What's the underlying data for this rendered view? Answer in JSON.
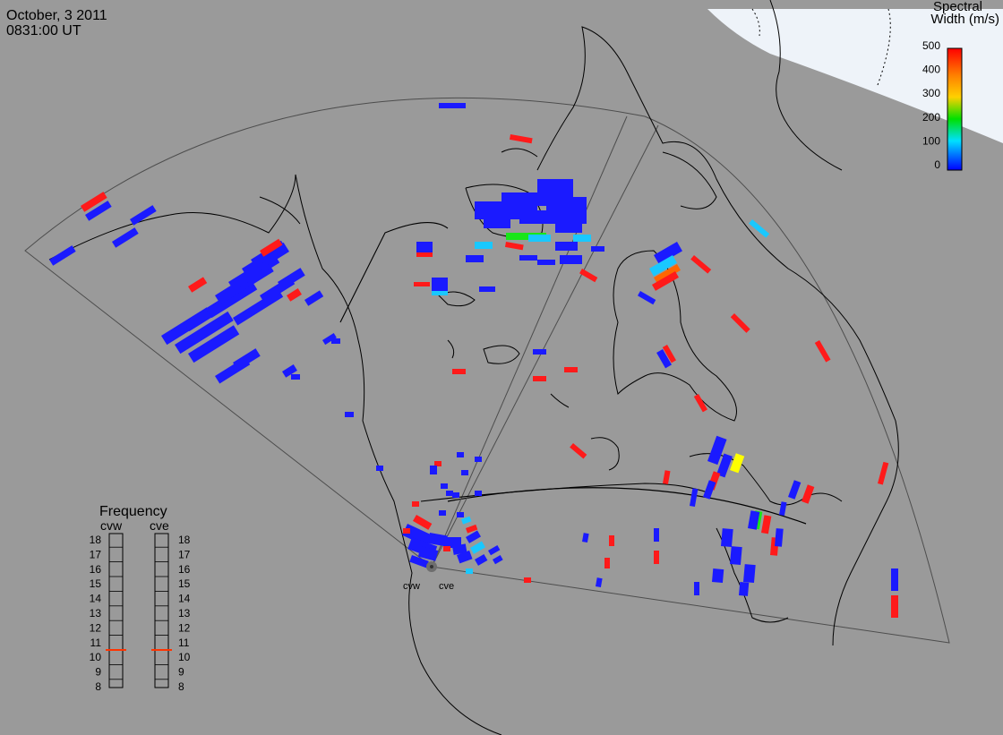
{
  "header": {
    "date": "October, 3 2011",
    "time": "0831:00 UT"
  },
  "colorbar": {
    "title_line1": "Spectral",
    "title_line2": "Width (m/s)",
    "ticks": [
      "500",
      "400",
      "300",
      "200",
      "100",
      "0"
    ],
    "colors": [
      "#ff0000",
      "#ff7f00",
      "#ffd000",
      "#00e000",
      "#00e0ff",
      "#0000ff"
    ]
  },
  "frequency_panel": {
    "title": "Frequency",
    "radars": [
      "cvw",
      "cve"
    ],
    "levels": [
      "18",
      "17",
      "16",
      "15",
      "14",
      "13",
      "12",
      "11",
      "10",
      "9",
      "8"
    ],
    "selected_mhz": [
      10.5,
      10.5
    ],
    "marker_color": "#ff3300"
  },
  "sites": {
    "cvw": "cvw",
    "cve": "cve"
  },
  "colors": {
    "background": "#9a9a9a",
    "coastline": "#000000",
    "arctic_overlay": "#eef3f9",
    "fov_line": "#555555"
  }
}
